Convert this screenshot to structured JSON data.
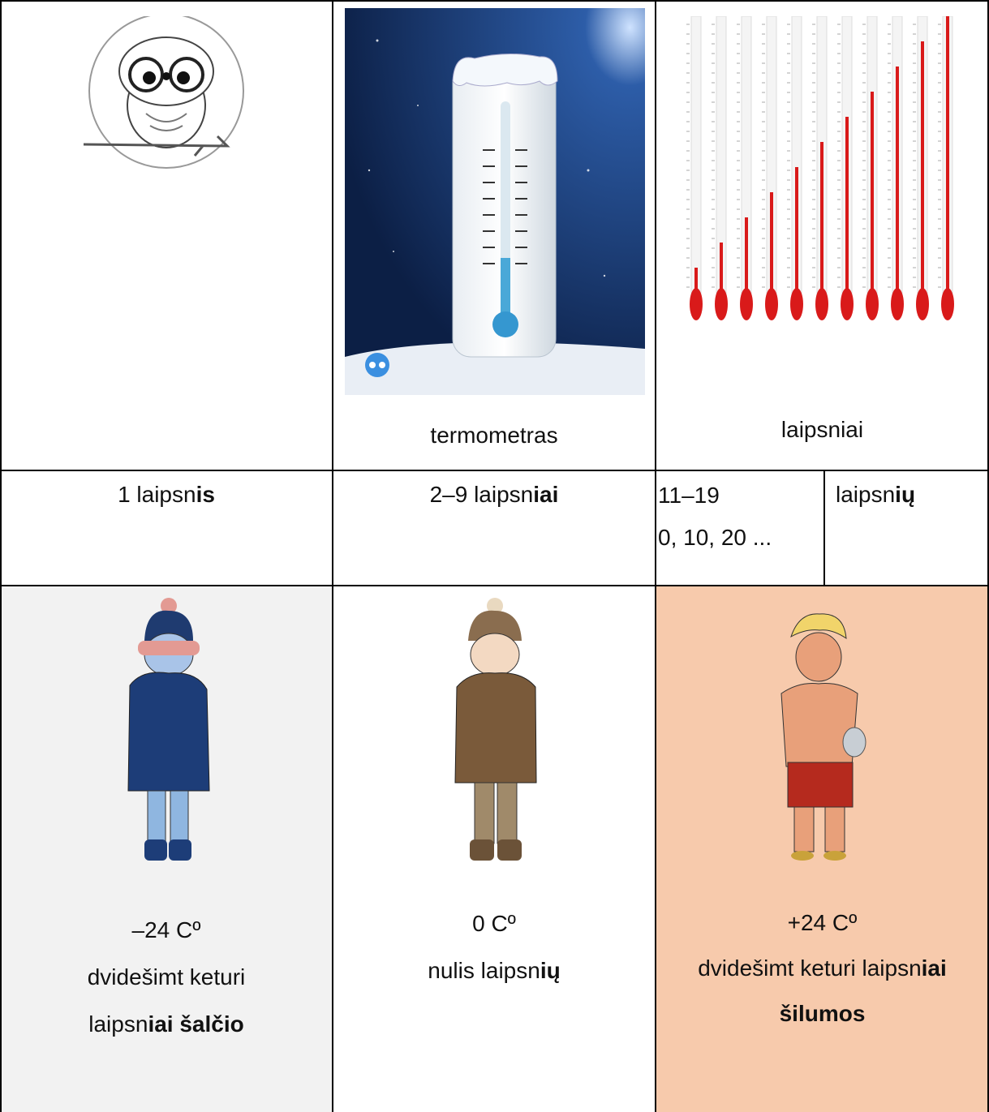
{
  "table": {
    "rows": [
      [
        {
          "lines": [
            [
              {
                "text": "termometras",
                "bold": false
              }
            ]
          ]
        },
        {
          "lines": [
            [
              {
                "text": "laipsniai",
                "bold": false
              }
            ]
          ]
        }
      ],
      [
        {
          "lines": [
            [
              {
                "text": "1 laipsn",
                "bold": false
              },
              {
                "text": "is",
                "bold": true
              }
            ]
          ]
        },
        {
          "lines": [
            [
              {
                "text": "2–9 laipsn",
                "bold": false
              },
              {
                "text": "iai",
                "bold": true
              }
            ]
          ]
        },
        {
          "lines": [
            [
              {
                "text": "11–19",
                "bold": false
              }
            ],
            [
              {
                "text": "0, 10, 20 ...",
                "bold": false
              }
            ]
          ]
        },
        {
          "lines": [
            [
              {
                "text": "laipsn",
                "bold": false
              },
              {
                "text": "ių",
                "bold": true
              }
            ]
          ]
        }
      ],
      [
        {
          "lines": [
            [
              {
                "text": "–24 Cº",
                "bold": false
              }
            ],
            [
              {
                "text": "dvidešimt keturi",
                "bold": false
              }
            ],
            [
              {
                "text": "laipsn",
                "bold": false
              },
              {
                "text": "iai šalčio",
                "bold": true
              }
            ]
          ]
        },
        {
          "lines": [
            [
              {
                "text": "0 Cº",
                "bold": false
              }
            ],
            [
              {
                "text": "nulis laipsn",
                "bold": false
              },
              {
                "text": "ių",
                "bold": true
              }
            ]
          ]
        },
        {
          "lines": [
            [
              {
                "text": "+24 Cº",
                "bold": false
              }
            ],
            [
              {
                "text": "dvidešimt keturi laipsn",
                "bold": false
              },
              {
                "text": "iai",
                "bold": true
              }
            ],
            [
              {
                "text": "šilumos",
                "bold": true
              }
            ]
          ]
        }
      ]
    ]
  }
}
